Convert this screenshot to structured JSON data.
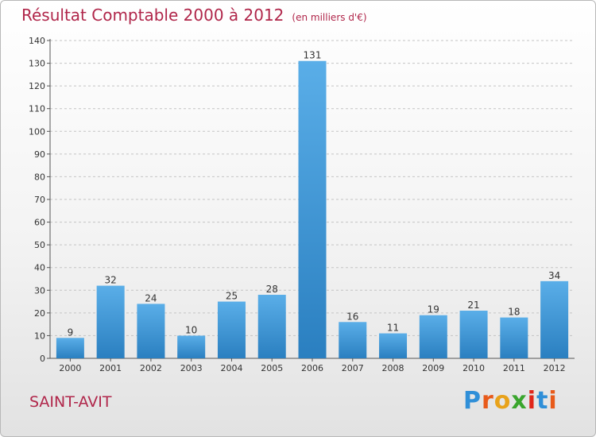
{
  "chart_data": {
    "type": "bar",
    "title": "Résultat Comptable 2000 à 2012",
    "unit_note": "(en milliers d'€)",
    "categories": [
      "2000",
      "2001",
      "2002",
      "2003",
      "2004",
      "2005",
      "2006",
      "2007",
      "2008",
      "2009",
      "2010",
      "2011",
      "2012"
    ],
    "values": [
      9,
      32,
      24,
      10,
      25,
      28,
      131,
      16,
      11,
      19,
      21,
      18,
      34
    ],
    "ylim": [
      0,
      140
    ],
    "yticks": [
      0,
      10,
      20,
      30,
      40,
      50,
      60,
      70,
      80,
      90,
      100,
      110,
      120,
      130,
      140
    ],
    "grid": true,
    "bar_color_top": "#5aaee8",
    "bar_color_bottom": "#2a7fc0",
    "title_color": "#b0264a"
  },
  "footer": {
    "place_name": "SAINT-AVIT"
  },
  "brand": {
    "name": "Proxiti",
    "letters": [
      "P",
      "r",
      "o",
      "x",
      "i",
      "t",
      "i"
    ],
    "letter_colors": [
      "#2f8fd8",
      "#e85a1a",
      "#e8a21a",
      "#3aa52d",
      "#e0261a",
      "#2f8fd8",
      "#e85a1a"
    ]
  }
}
